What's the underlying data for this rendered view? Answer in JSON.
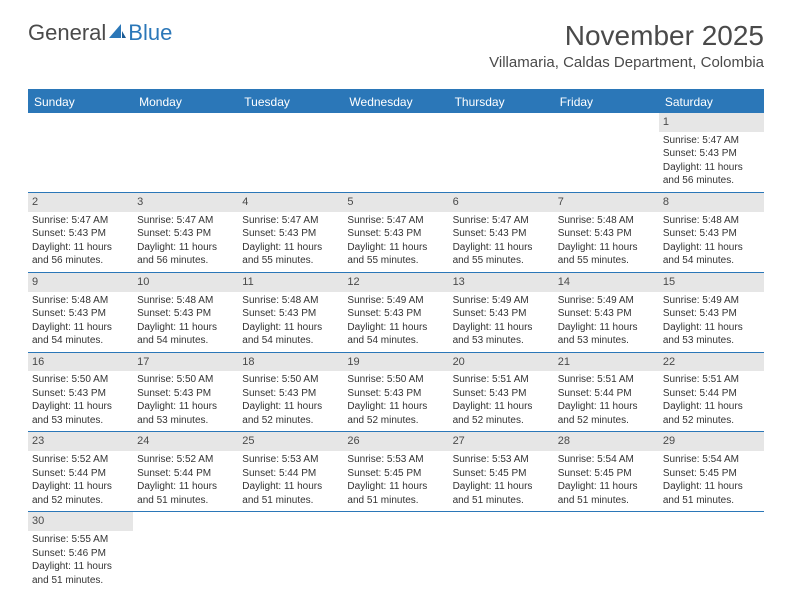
{
  "logo": {
    "part1": "General",
    "part2": "Blue"
  },
  "title": "November 2025",
  "location": "Villamaria, Caldas Department, Colombia",
  "colors": {
    "header_bg": "#2b77b8",
    "header_text": "#ffffff",
    "daynum_bg": "#e6e6e6",
    "border": "#2b77b8",
    "text": "#333333",
    "title_text": "#4a4a4a"
  },
  "weekdays": [
    "Sunday",
    "Monday",
    "Tuesday",
    "Wednesday",
    "Thursday",
    "Friday",
    "Saturday"
  ],
  "weeks": [
    [
      {
        "n": "",
        "sr": "",
        "ss": "",
        "dl": ""
      },
      {
        "n": "",
        "sr": "",
        "ss": "",
        "dl": ""
      },
      {
        "n": "",
        "sr": "",
        "ss": "",
        "dl": ""
      },
      {
        "n": "",
        "sr": "",
        "ss": "",
        "dl": ""
      },
      {
        "n": "",
        "sr": "",
        "ss": "",
        "dl": ""
      },
      {
        "n": "",
        "sr": "",
        "ss": "",
        "dl": ""
      },
      {
        "n": "1",
        "sr": "Sunrise: 5:47 AM",
        "ss": "Sunset: 5:43 PM",
        "dl": "Daylight: 11 hours and 56 minutes."
      }
    ],
    [
      {
        "n": "2",
        "sr": "Sunrise: 5:47 AM",
        "ss": "Sunset: 5:43 PM",
        "dl": "Daylight: 11 hours and 56 minutes."
      },
      {
        "n": "3",
        "sr": "Sunrise: 5:47 AM",
        "ss": "Sunset: 5:43 PM",
        "dl": "Daylight: 11 hours and 56 minutes."
      },
      {
        "n": "4",
        "sr": "Sunrise: 5:47 AM",
        "ss": "Sunset: 5:43 PM",
        "dl": "Daylight: 11 hours and 55 minutes."
      },
      {
        "n": "5",
        "sr": "Sunrise: 5:47 AM",
        "ss": "Sunset: 5:43 PM",
        "dl": "Daylight: 11 hours and 55 minutes."
      },
      {
        "n": "6",
        "sr": "Sunrise: 5:47 AM",
        "ss": "Sunset: 5:43 PM",
        "dl": "Daylight: 11 hours and 55 minutes."
      },
      {
        "n": "7",
        "sr": "Sunrise: 5:48 AM",
        "ss": "Sunset: 5:43 PM",
        "dl": "Daylight: 11 hours and 55 minutes."
      },
      {
        "n": "8",
        "sr": "Sunrise: 5:48 AM",
        "ss": "Sunset: 5:43 PM",
        "dl": "Daylight: 11 hours and 54 minutes."
      }
    ],
    [
      {
        "n": "9",
        "sr": "Sunrise: 5:48 AM",
        "ss": "Sunset: 5:43 PM",
        "dl": "Daylight: 11 hours and 54 minutes."
      },
      {
        "n": "10",
        "sr": "Sunrise: 5:48 AM",
        "ss": "Sunset: 5:43 PM",
        "dl": "Daylight: 11 hours and 54 minutes."
      },
      {
        "n": "11",
        "sr": "Sunrise: 5:48 AM",
        "ss": "Sunset: 5:43 PM",
        "dl": "Daylight: 11 hours and 54 minutes."
      },
      {
        "n": "12",
        "sr": "Sunrise: 5:49 AM",
        "ss": "Sunset: 5:43 PM",
        "dl": "Daylight: 11 hours and 54 minutes."
      },
      {
        "n": "13",
        "sr": "Sunrise: 5:49 AM",
        "ss": "Sunset: 5:43 PM",
        "dl": "Daylight: 11 hours and 53 minutes."
      },
      {
        "n": "14",
        "sr": "Sunrise: 5:49 AM",
        "ss": "Sunset: 5:43 PM",
        "dl": "Daylight: 11 hours and 53 minutes."
      },
      {
        "n": "15",
        "sr": "Sunrise: 5:49 AM",
        "ss": "Sunset: 5:43 PM",
        "dl": "Daylight: 11 hours and 53 minutes."
      }
    ],
    [
      {
        "n": "16",
        "sr": "Sunrise: 5:50 AM",
        "ss": "Sunset: 5:43 PM",
        "dl": "Daylight: 11 hours and 53 minutes."
      },
      {
        "n": "17",
        "sr": "Sunrise: 5:50 AM",
        "ss": "Sunset: 5:43 PM",
        "dl": "Daylight: 11 hours and 53 minutes."
      },
      {
        "n": "18",
        "sr": "Sunrise: 5:50 AM",
        "ss": "Sunset: 5:43 PM",
        "dl": "Daylight: 11 hours and 52 minutes."
      },
      {
        "n": "19",
        "sr": "Sunrise: 5:50 AM",
        "ss": "Sunset: 5:43 PM",
        "dl": "Daylight: 11 hours and 52 minutes."
      },
      {
        "n": "20",
        "sr": "Sunrise: 5:51 AM",
        "ss": "Sunset: 5:43 PM",
        "dl": "Daylight: 11 hours and 52 minutes."
      },
      {
        "n": "21",
        "sr": "Sunrise: 5:51 AM",
        "ss": "Sunset: 5:44 PM",
        "dl": "Daylight: 11 hours and 52 minutes."
      },
      {
        "n": "22",
        "sr": "Sunrise: 5:51 AM",
        "ss": "Sunset: 5:44 PM",
        "dl": "Daylight: 11 hours and 52 minutes."
      }
    ],
    [
      {
        "n": "23",
        "sr": "Sunrise: 5:52 AM",
        "ss": "Sunset: 5:44 PM",
        "dl": "Daylight: 11 hours and 52 minutes."
      },
      {
        "n": "24",
        "sr": "Sunrise: 5:52 AM",
        "ss": "Sunset: 5:44 PM",
        "dl": "Daylight: 11 hours and 51 minutes."
      },
      {
        "n": "25",
        "sr": "Sunrise: 5:53 AM",
        "ss": "Sunset: 5:44 PM",
        "dl": "Daylight: 11 hours and 51 minutes."
      },
      {
        "n": "26",
        "sr": "Sunrise: 5:53 AM",
        "ss": "Sunset: 5:45 PM",
        "dl": "Daylight: 11 hours and 51 minutes."
      },
      {
        "n": "27",
        "sr": "Sunrise: 5:53 AM",
        "ss": "Sunset: 5:45 PM",
        "dl": "Daylight: 11 hours and 51 minutes."
      },
      {
        "n": "28",
        "sr": "Sunrise: 5:54 AM",
        "ss": "Sunset: 5:45 PM",
        "dl": "Daylight: 11 hours and 51 minutes."
      },
      {
        "n": "29",
        "sr": "Sunrise: 5:54 AM",
        "ss": "Sunset: 5:45 PM",
        "dl": "Daylight: 11 hours and 51 minutes."
      }
    ],
    [
      {
        "n": "30",
        "sr": "Sunrise: 5:55 AM",
        "ss": "Sunset: 5:46 PM",
        "dl": "Daylight: 11 hours and 51 minutes."
      },
      {
        "n": "",
        "sr": "",
        "ss": "",
        "dl": ""
      },
      {
        "n": "",
        "sr": "",
        "ss": "",
        "dl": ""
      },
      {
        "n": "",
        "sr": "",
        "ss": "",
        "dl": ""
      },
      {
        "n": "",
        "sr": "",
        "ss": "",
        "dl": ""
      },
      {
        "n": "",
        "sr": "",
        "ss": "",
        "dl": ""
      },
      {
        "n": "",
        "sr": "",
        "ss": "",
        "dl": ""
      }
    ]
  ]
}
